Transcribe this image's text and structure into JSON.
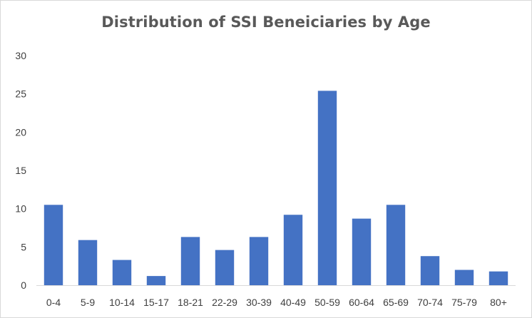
{
  "chart_data": {
    "type": "bar",
    "title": "Distribution of SSI Beneiciaries by Age",
    "xlabel": "",
    "ylabel": "",
    "categories": [
      "0-4",
      "5-9",
      "10-14",
      "15-17",
      "18-21",
      "22-29",
      "30-39",
      "40-49",
      "50-59",
      "60-64",
      "65-69",
      "70-74",
      "75-79",
      "80+"
    ],
    "values": [
      10.5,
      5.9,
      3.3,
      1.2,
      6.3,
      4.6,
      6.3,
      9.2,
      25.4,
      8.7,
      10.5,
      3.8,
      2.0,
      1.8
    ],
    "ylim": [
      0,
      30
    ],
    "yticks": [
      0,
      5,
      10,
      15,
      20,
      25,
      30
    ],
    "grid": false,
    "legend": "none",
    "bar_color": "#4472C4"
  }
}
